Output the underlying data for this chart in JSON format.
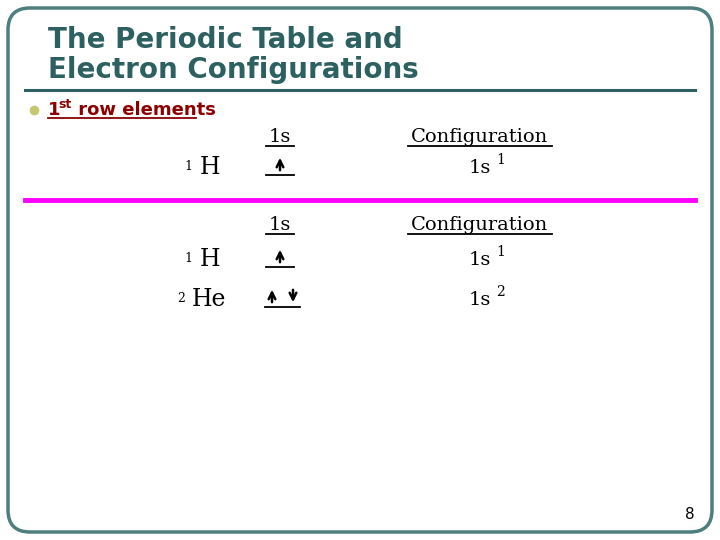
{
  "bg_color": "#ffffff",
  "border_color": "#4d7f7f",
  "title_line1": "The Periodic Table and",
  "title_line2": "Electron Configurations",
  "title_color": "#2d6060",
  "title_underline_color": "#2d6060",
  "bullet_color": "#c8c870",
  "bullet_text_color": "#8b0000",
  "magenta_line_color": "#ff00ff",
  "page_number": "8"
}
